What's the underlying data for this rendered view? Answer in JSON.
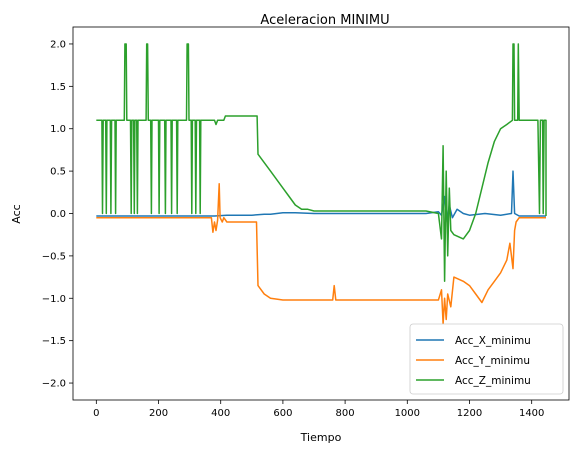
{
  "chart_data": {
    "type": "line",
    "title": "Aceleracion MINIMU",
    "xlabel": "Tiempo",
    "ylabel": "Acc",
    "xlim": [
      -75,
      1520
    ],
    "ylim": [
      -2.2,
      2.2
    ],
    "xticks": [
      0,
      200,
      400,
      600,
      800,
      1000,
      1200,
      1400
    ],
    "xtick_labels": [
      "0",
      "200",
      "400",
      "600",
      "800",
      "1000",
      "1200",
      "1400"
    ],
    "yticks": [
      2.0,
      1.5,
      1.0,
      0.5,
      0.0,
      -0.5,
      -1.0,
      -1.5,
      -2.0
    ],
    "ytick_labels": [
      "2.0",
      "1.5",
      "1.0",
      "0.5",
      "0.0",
      "−0.5",
      "−1.0",
      "−1.5",
      "−2.0"
    ],
    "grid": false,
    "legend_position": "lower-right",
    "series": [
      {
        "name": "Acc_X_minimu",
        "color": "#1f77b4",
        "points": [
          [
            0,
            -0.03
          ],
          [
            100,
            -0.03
          ],
          [
            200,
            -0.03
          ],
          [
            300,
            -0.03
          ],
          [
            380,
            -0.03
          ],
          [
            420,
            -0.02
          ],
          [
            500,
            -0.02
          ],
          [
            540,
            -0.01
          ],
          [
            560,
            -0.01
          ],
          [
            580,
            0.0
          ],
          [
            600,
            0.01
          ],
          [
            640,
            0.01
          ],
          [
            700,
            0.0
          ],
          [
            800,
            0.0
          ],
          [
            900,
            0.0
          ],
          [
            1000,
            0.0
          ],
          [
            1060,
            0.0
          ],
          [
            1100,
            0.02
          ],
          [
            1110,
            -0.02
          ],
          [
            1120,
            0.2
          ],
          [
            1128,
            -0.1
          ],
          [
            1135,
            0.1
          ],
          [
            1145,
            -0.05
          ],
          [
            1160,
            0.05
          ],
          [
            1180,
            0.0
          ],
          [
            1200,
            -0.02
          ],
          [
            1250,
            0.0
          ],
          [
            1300,
            -0.02
          ],
          [
            1335,
            0.0
          ],
          [
            1340,
            0.5
          ],
          [
            1345,
            0.0
          ],
          [
            1360,
            -0.03
          ],
          [
            1446,
            -0.03
          ]
        ]
      },
      {
        "name": "Acc_Y_minimu",
        "color": "#ff7f0e",
        "points": [
          [
            0,
            -0.05
          ],
          [
            100,
            -0.05
          ],
          [
            200,
            -0.05
          ],
          [
            300,
            -0.05
          ],
          [
            370,
            -0.05
          ],
          [
            375,
            -0.22
          ],
          [
            380,
            -0.1
          ],
          [
            385,
            -0.2
          ],
          [
            390,
            -0.08
          ],
          [
            395,
            0.35
          ],
          [
            398,
            -0.05
          ],
          [
            405,
            -0.1
          ],
          [
            410,
            -0.05
          ],
          [
            420,
            -0.1
          ],
          [
            515,
            -0.1
          ],
          [
            520,
            -0.85
          ],
          [
            540,
            -0.95
          ],
          [
            560,
            -1.0
          ],
          [
            600,
            -1.02
          ],
          [
            700,
            -1.02
          ],
          [
            760,
            -1.02
          ],
          [
            765,
            -0.85
          ],
          [
            770,
            -1.02
          ],
          [
            900,
            -1.02
          ],
          [
            1000,
            -1.02
          ],
          [
            1100,
            -1.02
          ],
          [
            1110,
            -0.9
          ],
          [
            1115,
            -1.3
          ],
          [
            1120,
            -1.0
          ],
          [
            1125,
            -1.25
          ],
          [
            1130,
            -0.95
          ],
          [
            1140,
            -1.1
          ],
          [
            1150,
            -0.75
          ],
          [
            1180,
            -0.8
          ],
          [
            1200,
            -0.85
          ],
          [
            1220,
            -0.95
          ],
          [
            1240,
            -1.05
          ],
          [
            1260,
            -0.9
          ],
          [
            1280,
            -0.8
          ],
          [
            1300,
            -0.7
          ],
          [
            1320,
            -0.55
          ],
          [
            1330,
            -0.35
          ],
          [
            1340,
            -0.65
          ],
          [
            1345,
            -0.2
          ],
          [
            1350,
            -0.1
          ],
          [
            1360,
            -0.05
          ],
          [
            1446,
            -0.05
          ]
        ]
      },
      {
        "name": "Acc_Z_minimu",
        "color": "#2ca02c",
        "points": [
          [
            0,
            1.1
          ],
          [
            18,
            1.1
          ],
          [
            20,
            0.0
          ],
          [
            22,
            1.1
          ],
          [
            30,
            1.1
          ],
          [
            32,
            0.0
          ],
          [
            34,
            1.1
          ],
          [
            45,
            1.1
          ],
          [
            47,
            0.0
          ],
          [
            49,
            1.1
          ],
          [
            60,
            1.1
          ],
          [
            62,
            0.0
          ],
          [
            64,
            1.1
          ],
          [
            90,
            1.1
          ],
          [
            92,
            2.0
          ],
          [
            96,
            2.0
          ],
          [
            98,
            1.1
          ],
          [
            110,
            1.1
          ],
          [
            112,
            0.0
          ],
          [
            114,
            1.1
          ],
          [
            120,
            1.1
          ],
          [
            122,
            0.0
          ],
          [
            124,
            1.1
          ],
          [
            130,
            1.1
          ],
          [
            132,
            0.0
          ],
          [
            134,
            1.1
          ],
          [
            160,
            1.1
          ],
          [
            162,
            2.0
          ],
          [
            165,
            2.0
          ],
          [
            167,
            1.1
          ],
          [
            175,
            1.1
          ],
          [
            177,
            0.0
          ],
          [
            179,
            1.1
          ],
          [
            200,
            1.1
          ],
          [
            202,
            0.0
          ],
          [
            204,
            1.1
          ],
          [
            220,
            1.1
          ],
          [
            222,
            0.0
          ],
          [
            224,
            1.1
          ],
          [
            240,
            1.1
          ],
          [
            242,
            0.0
          ],
          [
            244,
            1.1
          ],
          [
            258,
            1.1
          ],
          [
            260,
            0.0
          ],
          [
            262,
            1.1
          ],
          [
            290,
            1.1
          ],
          [
            292,
            2.0
          ],
          [
            296,
            2.0
          ],
          [
            298,
            1.1
          ],
          [
            305,
            1.1
          ],
          [
            307,
            0.0
          ],
          [
            309,
            1.1
          ],
          [
            318,
            1.1
          ],
          [
            320,
            0.0
          ],
          [
            322,
            1.1
          ],
          [
            332,
            1.1
          ],
          [
            334,
            0.0
          ],
          [
            336,
            1.1
          ],
          [
            380,
            1.1
          ],
          [
            385,
            1.05
          ],
          [
            390,
            1.1
          ],
          [
            410,
            1.1
          ],
          [
            415,
            1.15
          ],
          [
            517,
            1.15
          ],
          [
            520,
            0.7
          ],
          [
            540,
            0.6
          ],
          [
            560,
            0.5
          ],
          [
            580,
            0.4
          ],
          [
            600,
            0.3
          ],
          [
            620,
            0.2
          ],
          [
            640,
            0.1
          ],
          [
            660,
            0.05
          ],
          [
            680,
            0.05
          ],
          [
            700,
            0.03
          ],
          [
            760,
            0.03
          ],
          [
            1000,
            0.03
          ],
          [
            1060,
            0.03
          ],
          [
            1100,
            0.0
          ],
          [
            1110,
            -0.3
          ],
          [
            1115,
            0.8
          ],
          [
            1120,
            -0.8
          ],
          [
            1125,
            0.5
          ],
          [
            1130,
            -0.5
          ],
          [
            1135,
            0.3
          ],
          [
            1140,
            -0.2
          ],
          [
            1150,
            -0.25
          ],
          [
            1180,
            -0.3
          ],
          [
            1200,
            -0.2
          ],
          [
            1220,
            0.0
          ],
          [
            1240,
            0.3
          ],
          [
            1260,
            0.6
          ],
          [
            1280,
            0.85
          ],
          [
            1300,
            1.0
          ],
          [
            1320,
            1.05
          ],
          [
            1338,
            1.1
          ],
          [
            1340,
            2.0
          ],
          [
            1343,
            2.0
          ],
          [
            1345,
            1.1
          ],
          [
            1355,
            1.1
          ],
          [
            1357,
            2.0
          ],
          [
            1360,
            1.1
          ],
          [
            1380,
            1.1
          ],
          [
            1420,
            1.1
          ],
          [
            1425,
            0.0
          ],
          [
            1428,
            1.1
          ],
          [
            1435,
            1.1
          ],
          [
            1437,
            0.0
          ],
          [
            1440,
            1.1
          ],
          [
            1446,
            1.1
          ],
          [
            1446,
            -0.03
          ]
        ]
      }
    ]
  }
}
